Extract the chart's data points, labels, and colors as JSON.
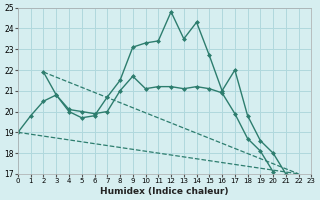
{
  "xlabel": "Humidex (Indice chaleur)",
  "xlim": [
    0,
    23
  ],
  "ylim": [
    17,
    25
  ],
  "xticks": [
    0,
    1,
    2,
    3,
    4,
    5,
    6,
    7,
    8,
    9,
    10,
    11,
    12,
    13,
    14,
    15,
    16,
    17,
    18,
    19,
    20,
    21,
    22,
    23
  ],
  "yticks": [
    17,
    18,
    19,
    20,
    21,
    22,
    23,
    24,
    25
  ],
  "line_color": "#2d7d6e",
  "bg_color": "#d6eef0",
  "grid_color": "#b0d8dd",
  "curve1_x": [
    0,
    1,
    2,
    3,
    4,
    5,
    6,
    7,
    8,
    9,
    10,
    11,
    12,
    13,
    14,
    15,
    16,
    17,
    18,
    19,
    20,
    21
  ],
  "curve1_y": [
    19.0,
    19.8,
    20.5,
    20.8,
    20.0,
    19.7,
    19.8,
    20.7,
    21.5,
    23.1,
    23.3,
    23.4,
    24.8,
    23.5,
    24.3,
    22.7,
    21.0,
    22.0,
    19.8,
    18.6,
    18.0,
    17.0
  ],
  "curve2_x": [
    2,
    3,
    4,
    5,
    6,
    7,
    8,
    9,
    10,
    11,
    12,
    13,
    14,
    15,
    16,
    17,
    18,
    19,
    20
  ],
  "curve2_y": [
    21.9,
    20.8,
    20.1,
    20.0,
    19.9,
    20.0,
    21.0,
    21.7,
    21.1,
    21.2,
    21.2,
    21.1,
    21.2,
    21.1,
    20.9,
    19.9,
    18.7,
    18.1,
    17.1
  ],
  "trendline1_x": [
    2,
    22
  ],
  "trendline1_y": [
    21.9,
    17.0
  ],
  "trendline2_x": [
    0,
    22
  ],
  "trendline2_y": [
    19.0,
    17.0
  ]
}
